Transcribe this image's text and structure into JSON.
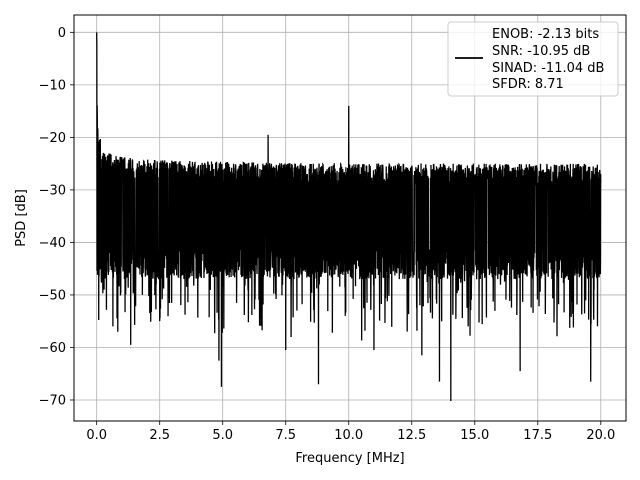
{
  "chart_data": {
    "type": "line",
    "title": "",
    "xlabel": "Frequency [MHz]",
    "ylabel": "PSD [dB]",
    "xlim": [
      -0.9,
      21.0
    ],
    "ylim": [
      -74.0,
      3.3
    ],
    "xticks": [
      0.0,
      2.5,
      5.0,
      7.5,
      10.0,
      12.5,
      15.0,
      17.5,
      20.0
    ],
    "xtick_labels": [
      "0.0",
      "2.5",
      "5.0",
      "7.5",
      "10.0",
      "12.5",
      "15.0",
      "17.5",
      "20.0"
    ],
    "yticks": [
      0,
      -10,
      -20,
      -30,
      -40,
      -50,
      -60,
      -70
    ],
    "ytick_labels": [
      "0",
      "−10",
      "−20",
      "−30",
      "−40",
      "−50",
      "−60",
      "−70"
    ],
    "grid": true,
    "legend_position": "top-right",
    "series": [
      {
        "color": "#000000",
        "description": "Dense noisy power spectral density from 0 to 20 MHz; peak 0 dB at DC, falling to about -20 dB; noise band roughly -25 to -45 dB; spurs near 6.8 MHz (-19.5 dB) and 10 MHz (-14 dB); deepest dips near -70 dB at 14 MHz",
        "x_range": [
          0.0,
          20.0
        ],
        "peak": {
          "x": 0.0,
          "y": 0.0
        },
        "spurs": [
          {
            "x": 6.8,
            "y": -19.5
          },
          {
            "x": 10.0,
            "y": -14.0
          }
        ],
        "noise_top": -25.0,
        "noise_bottom": -45.0,
        "deep_dips": [
          {
            "x": 1.35,
            "y": -59.5
          },
          {
            "x": 4.85,
            "y": -62.5
          },
          {
            "x": 4.95,
            "y": -67.5
          },
          {
            "x": 7.5,
            "y": -60.5
          },
          {
            "x": 8.8,
            "y": -67.0
          },
          {
            "x": 11.0,
            "y": -60.5
          },
          {
            "x": 12.9,
            "y": -61.5
          },
          {
            "x": 13.6,
            "y": -66.5
          },
          {
            "x": 14.05,
            "y": -70.2
          },
          {
            "x": 16.8,
            "y": -64.5
          },
          {
            "x": 19.6,
            "y": -66.5
          }
        ]
      }
    ],
    "legend": {
      "lines": [
        "ENOB: -2.13 bits",
        "SNR: -10.95 dB",
        "SINAD: -11.04 dB",
        "SFDR: 8.71"
      ]
    }
  }
}
